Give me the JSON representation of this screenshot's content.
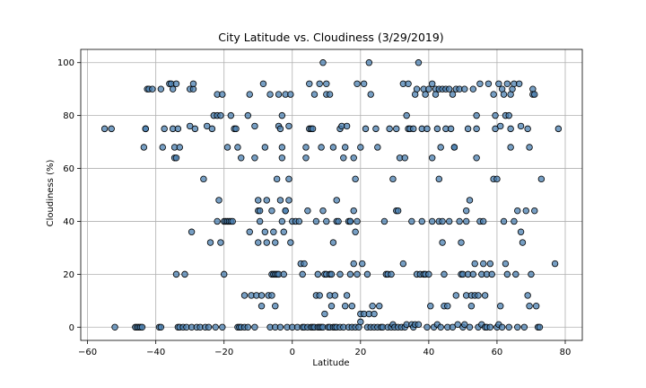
{
  "chart_data": {
    "type": "scatter",
    "title": "City Latitude vs. Cloudiness (3/29/2019)",
    "xlabel": "Latitude",
    "ylabel": "Cloudiness (%)",
    "xlim": [
      -62,
      85
    ],
    "ylim": [
      -5,
      105
    ],
    "xticks": [
      -60,
      -40,
      -20,
      0,
      20,
      40,
      60,
      80
    ],
    "yticks": [
      0,
      20,
      40,
      60,
      80,
      100
    ],
    "grid": true,
    "marker_color": "#4a7fb0",
    "points": [
      [
        -55,
        75
      ],
      [
        -53,
        75
      ],
      [
        -52,
        0
      ],
      [
        -46,
        0
      ],
      [
        -45.5,
        0
      ],
      [
        -45,
        0
      ],
      [
        -44.5,
        0
      ],
      [
        -44,
        0
      ],
      [
        -43.5,
        68
      ],
      [
        -43,
        75
      ],
      [
        -43,
        75
      ],
      [
        -42.5,
        90
      ],
      [
        -42,
        90
      ],
      [
        -41,
        90
      ],
      [
        -39,
        0
      ],
      [
        -38.5,
        0
      ],
      [
        -38.5,
        90
      ],
      [
        -38,
        68
      ],
      [
        -37.5,
        75
      ],
      [
        -36,
        92
      ],
      [
        -35.5,
        92
      ],
      [
        -35,
        90
      ],
      [
        -35,
        75
      ],
      [
        -34.5,
        68
      ],
      [
        -34.5,
        64
      ],
      [
        -34,
        64
      ],
      [
        -34,
        92
      ],
      [
        -33.5,
        75
      ],
      [
        -34,
        20
      ],
      [
        -33,
        68
      ],
      [
        -33.5,
        0
      ],
      [
        -33,
        0
      ],
      [
        -32,
        0
      ],
      [
        -31.5,
        20
      ],
      [
        -31,
        0
      ],
      [
        -30,
        76
      ],
      [
        -30,
        90
      ],
      [
        -29.5,
        0
      ],
      [
        -29.5,
        36
      ],
      [
        -29,
        90
      ],
      [
        -29,
        92
      ],
      [
        -28.5,
        75
      ],
      [
        -28,
        0
      ],
      [
        -27,
        0
      ],
      [
        -26,
        56
      ],
      [
        -25.5,
        0
      ],
      [
        -25,
        76
      ],
      [
        -24.5,
        0
      ],
      [
        -24,
        32
      ],
      [
        -23.5,
        75
      ],
      [
        -23,
        80
      ],
      [
        -22.5,
        0
      ],
      [
        -22,
        80
      ],
      [
        -22,
        88
      ],
      [
        -22,
        40
      ],
      [
        -21.5,
        48
      ],
      [
        -21,
        80
      ],
      [
        -21,
        32
      ],
      [
        -20.5,
        88
      ],
      [
        -20.5,
        0
      ],
      [
        -20,
        40
      ],
      [
        -20,
        20
      ],
      [
        -19.5,
        40
      ],
      [
        -19,
        68
      ],
      [
        -19,
        40
      ],
      [
        -18.5,
        40
      ],
      [
        -18,
        40
      ],
      [
        -18,
        80
      ],
      [
        -17.5,
        40
      ],
      [
        -17,
        75
      ],
      [
        -16.5,
        75
      ],
      [
        -16,
        68
      ],
      [
        -16,
        0
      ],
      [
        -15.5,
        0
      ],
      [
        -15,
        64
      ],
      [
        -15,
        0
      ],
      [
        -14,
        12
      ],
      [
        -14,
        0
      ],
      [
        -13,
        80
      ],
      [
        -13,
        0
      ],
      [
        -12.5,
        88
      ],
      [
        -12.5,
        36
      ],
      [
        -12,
        12
      ],
      [
        -11,
        0
      ],
      [
        -11,
        76
      ],
      [
        -11,
        64
      ],
      [
        -10.5,
        12
      ],
      [
        -10,
        32
      ],
      [
        -10,
        44
      ],
      [
        -10,
        48
      ],
      [
        -9.5,
        40
      ],
      [
        -9.5,
        44
      ],
      [
        -9,
        12
      ],
      [
        -9,
        8
      ],
      [
        -8.5,
        92
      ],
      [
        -8,
        68
      ],
      [
        -8,
        36
      ],
      [
        -7.5,
        48
      ],
      [
        -7.5,
        32
      ],
      [
        -7,
        12
      ],
      [
        -6.5,
        0
      ],
      [
        -6.5,
        88
      ],
      [
        -6,
        44
      ],
      [
        -6,
        20
      ],
      [
        -6,
        12
      ],
      [
        -5.5,
        20
      ],
      [
        -5.5,
        36
      ],
      [
        -5,
        8
      ],
      [
        -5,
        20
      ],
      [
        -5,
        32
      ],
      [
        -5,
        0
      ],
      [
        -4.5,
        56
      ],
      [
        -4.5,
        20
      ],
      [
        -4,
        20
      ],
      [
        -4,
        76
      ],
      [
        -4,
        88
      ],
      [
        -3.5,
        48
      ],
      [
        -3.5,
        75
      ],
      [
        -3.5,
        0
      ],
      [
        -3,
        64
      ],
      [
        -3,
        68
      ],
      [
        -3,
        80
      ],
      [
        -3,
        40
      ],
      [
        -2.5,
        36
      ],
      [
        -2.5,
        20
      ],
      [
        -2,
        44
      ],
      [
        -2,
        44
      ],
      [
        -2,
        88
      ],
      [
        -1.5,
        0
      ],
      [
        -1,
        56
      ],
      [
        -1,
        48
      ],
      [
        -1,
        76
      ],
      [
        -0.5,
        32
      ],
      [
        -0.5,
        88
      ],
      [
        0,
        40
      ],
      [
        0,
        0
      ],
      [
        1,
        40
      ],
      [
        1.5,
        0
      ],
      [
        2,
        40
      ],
      [
        2.5,
        24
      ],
      [
        3,
        0
      ],
      [
        3,
        20
      ],
      [
        3.5,
        0
      ],
      [
        3.5,
        24
      ],
      [
        4,
        68
      ],
      [
        4,
        64
      ],
      [
        4.5,
        44
      ],
      [
        4.5,
        0
      ],
      [
        5,
        92
      ],
      [
        5,
        75
      ],
      [
        5.5,
        75
      ],
      [
        5.5,
        0
      ],
      [
        6,
        0
      ],
      [
        6,
        75
      ],
      [
        6.5,
        88
      ],
      [
        6.5,
        0
      ],
      [
        7,
        40
      ],
      [
        7,
        12
      ],
      [
        7.5,
        0
      ],
      [
        7.5,
        20
      ],
      [
        8,
        12
      ],
      [
        8,
        92
      ],
      [
        8,
        0
      ],
      [
        8.5,
        0
      ],
      [
        8.5,
        68
      ],
      [
        9,
        100
      ],
      [
        9,
        44
      ],
      [
        9,
        0
      ],
      [
        9.5,
        20
      ],
      [
        9.5,
        5
      ],
      [
        10,
        92
      ],
      [
        10,
        88
      ],
      [
        10,
        20
      ],
      [
        10,
        40
      ],
      [
        10.5,
        0
      ],
      [
        11,
        0
      ],
      [
        11,
        88
      ],
      [
        11,
        12
      ],
      [
        11,
        20
      ],
      [
        11.5,
        20
      ],
      [
        11.5,
        8
      ],
      [
        12,
        32
      ],
      [
        12,
        68
      ],
      [
        12,
        0
      ],
      [
        12.5,
        0
      ],
      [
        12.5,
        12
      ],
      [
        13,
        0
      ],
      [
        13,
        48
      ],
      [
        13,
        40
      ],
      [
        13.5,
        40
      ],
      [
        14,
        20
      ],
      [
        14,
        75
      ],
      [
        14,
        0
      ],
      [
        14.5,
        76
      ],
      [
        15,
        64
      ],
      [
        15,
        0
      ],
      [
        15.5,
        68
      ],
      [
        15.5,
        8
      ],
      [
        16,
        76
      ],
      [
        16,
        12
      ],
      [
        16.5,
        0
      ],
      [
        16.5,
        40
      ],
      [
        17,
        40
      ],
      [
        17,
        20
      ],
      [
        17,
        40
      ],
      [
        17.5,
        0
      ],
      [
        17.5,
        8
      ],
      [
        18,
        64
      ],
      [
        18,
        24
      ],
      [
        18,
        44
      ],
      [
        18.5,
        56
      ],
      [
        18.5,
        0
      ],
      [
        18.5,
        36
      ],
      [
        19,
        20
      ],
      [
        19,
        92
      ],
      [
        19,
        40
      ],
      [
        19.5,
        0
      ],
      [
        20,
        2
      ],
      [
        20,
        68
      ],
      [
        20,
        5
      ],
      [
        20.5,
        24
      ],
      [
        21,
        92
      ],
      [
        21,
        5
      ],
      [
        21.5,
        75
      ],
      [
        22,
        0
      ],
      [
        22,
        20
      ],
      [
        22.5,
        100
      ],
      [
        22.5,
        5
      ],
      [
        23,
        88
      ],
      [
        23,
        0
      ],
      [
        23.5,
        8
      ],
      [
        24,
        0
      ],
      [
        24,
        5
      ],
      [
        24.5,
        75
      ],
      [
        25,
        68
      ],
      [
        25,
        0
      ],
      [
        25.5,
        8
      ],
      [
        26,
        0
      ],
      [
        26.5,
        0
      ],
      [
        27,
        40
      ],
      [
        27.5,
        20
      ],
      [
        28,
        20
      ],
      [
        28,
        0
      ],
      [
        28.5,
        75
      ],
      [
        29,
        20
      ],
      [
        29,
        0
      ],
      [
        29.5,
        56
      ],
      [
        29.5,
        1
      ],
      [
        30,
        0
      ],
      [
        30.5,
        75
      ],
      [
        30.5,
        44
      ],
      [
        31,
        44
      ],
      [
        31,
        0
      ],
      [
        31.5,
        64
      ],
      [
        32,
        0
      ],
      [
        32.5,
        92
      ],
      [
        32.5,
        24
      ],
      [
        33,
        0
      ],
      [
        33,
        64
      ],
      [
        33.5,
        80
      ],
      [
        33.5,
        1
      ],
      [
        34,
        75
      ],
      [
        34,
        92
      ],
      [
        34.5,
        75
      ],
      [
        35,
        1
      ],
      [
        35,
        40
      ],
      [
        35.5,
        75
      ],
      [
        35.5,
        0
      ],
      [
        36,
        88
      ],
      [
        36,
        1
      ],
      [
        36.5,
        90
      ],
      [
        36.5,
        20
      ],
      [
        37,
        100
      ],
      [
        37,
        1
      ],
      [
        37.5,
        20
      ],
      [
        38,
        40
      ],
      [
        38,
        75
      ],
      [
        38.5,
        90
      ],
      [
        38.5,
        20
      ],
      [
        39,
        88
      ],
      [
        39,
        20
      ],
      [
        39.5,
        75
      ],
      [
        39.5,
        0
      ],
      [
        40,
        20
      ],
      [
        40,
        90
      ],
      [
        40.5,
        8
      ],
      [
        41,
        92
      ],
      [
        41,
        64
      ],
      [
        41,
        40
      ],
      [
        41.5,
        0
      ],
      [
        42,
        90
      ],
      [
        42,
        88
      ],
      [
        42.5,
        75
      ],
      [
        42.5,
        1
      ],
      [
        43,
        56
      ],
      [
        43,
        90
      ],
      [
        43,
        40
      ],
      [
        43.5,
        0
      ],
      [
        43.5,
        68
      ],
      [
        44,
        32
      ],
      [
        44,
        40
      ],
      [
        44,
        90
      ],
      [
        44.5,
        20
      ],
      [
        44.5,
        8
      ],
      [
        45,
        75
      ],
      [
        45,
        90
      ],
      [
        45.5,
        8
      ],
      [
        45.5,
        0
      ],
      [
        46,
        90
      ],
      [
        46,
        40
      ],
      [
        46.5,
        75
      ],
      [
        47,
        0
      ],
      [
        47,
        88
      ],
      [
        47.5,
        68
      ],
      [
        47.5,
        68
      ],
      [
        48,
        12
      ],
      [
        48,
        90
      ],
      [
        48.5,
        1
      ],
      [
        49,
        40
      ],
      [
        49,
        90
      ],
      [
        49.5,
        32
      ],
      [
        49.5,
        20
      ],
      [
        50,
        0
      ],
      [
        50,
        20
      ],
      [
        50.5,
        1
      ],
      [
        50.5,
        90
      ],
      [
        51,
        44
      ],
      [
        51,
        12
      ],
      [
        51,
        40
      ],
      [
        51.5,
        75
      ],
      [
        51.5,
        20
      ],
      [
        52,
        48
      ],
      [
        52,
        0
      ],
      [
        52.5,
        8
      ],
      [
        52.5,
        12
      ],
      [
        53,
        90
      ],
      [
        53,
        20
      ],
      [
        53.5,
        24
      ],
      [
        53.5,
        12
      ],
      [
        54,
        75
      ],
      [
        54,
        80
      ],
      [
        54,
        64
      ],
      [
        54.5,
        12
      ],
      [
        54.5,
        0
      ],
      [
        55,
        92
      ],
      [
        55,
        40
      ],
      [
        55.5,
        1
      ],
      [
        55.5,
        20
      ],
      [
        56,
        40
      ],
      [
        56,
        24
      ],
      [
        56.5,
        12
      ],
      [
        56.5,
        0
      ],
      [
        57,
        20
      ],
      [
        57,
        0
      ],
      [
        57.5,
        92
      ],
      [
        58,
        24
      ],
      [
        58,
        0
      ],
      [
        58.5,
        20
      ],
      [
        59,
        56
      ],
      [
        59,
        88
      ],
      [
        59.5,
        75
      ],
      [
        59.5,
        80
      ],
      [
        60,
        56
      ],
      [
        60,
        0
      ],
      [
        60.5,
        92
      ],
      [
        60.5,
        1
      ],
      [
        61,
        76
      ],
      [
        61,
        8
      ],
      [
        61.5,
        90
      ],
      [
        61.5,
        0
      ],
      [
        62,
        88
      ],
      [
        62,
        40
      ],
      [
        62.5,
        24
      ],
      [
        62.5,
        80
      ],
      [
        63,
        92
      ],
      [
        63,
        20
      ],
      [
        63.5,
        80
      ],
      [
        63.5,
        0
      ],
      [
        64,
        88
      ],
      [
        64,
        68
      ],
      [
        64,
        75
      ],
      [
        64.5,
        90
      ],
      [
        65,
        92
      ],
      [
        65,
        40
      ],
      [
        65.5,
        20
      ],
      [
        66,
        44
      ],
      [
        66,
        0
      ],
      [
        66.5,
        92
      ],
      [
        67,
        76
      ],
      [
        67,
        36
      ],
      [
        67.5,
        32
      ],
      [
        68,
        0
      ],
      [
        68.5,
        44
      ],
      [
        69,
        75
      ],
      [
        69,
        12
      ],
      [
        69.5,
        68
      ],
      [
        69.5,
        8
      ],
      [
        70,
        20
      ],
      [
        70.5,
        90
      ],
      [
        70.5,
        88
      ],
      [
        71,
        88
      ],
      [
        71,
        44
      ],
      [
        71.5,
        8
      ],
      [
        72,
        0
      ],
      [
        72.5,
        0
      ],
      [
        73,
        56
      ],
      [
        77,
        24
      ],
      [
        78,
        75
      ]
    ]
  }
}
